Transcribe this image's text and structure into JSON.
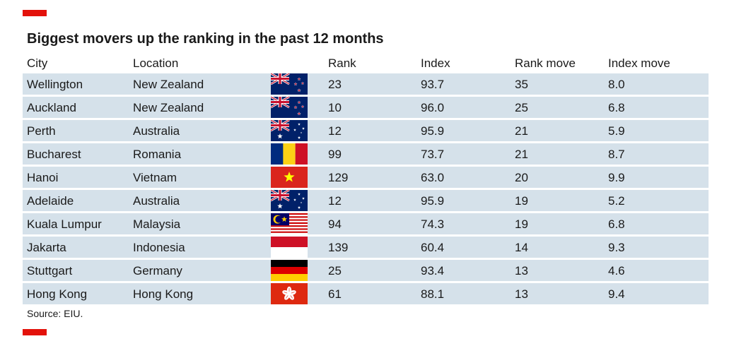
{
  "chart_data": {
    "type": "table",
    "title": "Biggest movers up the ranking in the past 12 months",
    "columns": [
      "City",
      "Location",
      "Rank",
      "Index",
      "Rank move",
      "Index move"
    ],
    "rows": [
      {
        "city": "Wellington",
        "location": "New Zealand",
        "flag": "new-zealand-flag",
        "rank": "23",
        "index": "93.7",
        "rank_move": "35",
        "index_move": "8.0"
      },
      {
        "city": "Auckland",
        "location": "New Zealand",
        "flag": "new-zealand-flag",
        "rank": "10",
        "index": "96.0",
        "rank_move": "25",
        "index_move": "6.8"
      },
      {
        "city": "Perth",
        "location": "Australia",
        "flag": "australia-flag",
        "rank": "12",
        "index": "95.9",
        "rank_move": "21",
        "index_move": "5.9"
      },
      {
        "city": "Bucharest",
        "location": "Romania",
        "flag": "romania-flag",
        "rank": "99",
        "index": "73.7",
        "rank_move": "21",
        "index_move": "8.7"
      },
      {
        "city": "Hanoi",
        "location": "Vietnam",
        "flag": "vietnam-flag",
        "rank": "129",
        "index": "63.0",
        "rank_move": "20",
        "index_move": "9.9"
      },
      {
        "city": "Adelaide",
        "location": "Australia",
        "flag": "australia-flag",
        "rank": "12",
        "index": "95.9",
        "rank_move": "19",
        "index_move": "5.2"
      },
      {
        "city": "Kuala Lumpur",
        "location": "Malaysia",
        "flag": "malaysia-flag",
        "rank": "94",
        "index": "74.3",
        "rank_move": "19",
        "index_move": "6.8"
      },
      {
        "city": "Jakarta",
        "location": "Indonesia",
        "flag": "indonesia-flag",
        "rank": "139",
        "index": "60.4",
        "rank_move": "14",
        "index_move": "9.3"
      },
      {
        "city": "Stuttgart",
        "location": "Germany",
        "flag": "germany-flag",
        "rank": "25",
        "index": "93.4",
        "rank_move": "13",
        "index_move": "4.6"
      },
      {
        "city": "Hong Kong",
        "location": "Hong Kong",
        "flag": "hong-kong-flag",
        "rank": "61",
        "index": "88.1",
        "rank_move": "13",
        "index_move": "9.4"
      }
    ],
    "source": "Source: EIU.",
    "colors": {
      "accent": "#e3120b",
      "row_background": "#d5e1ea"
    }
  }
}
